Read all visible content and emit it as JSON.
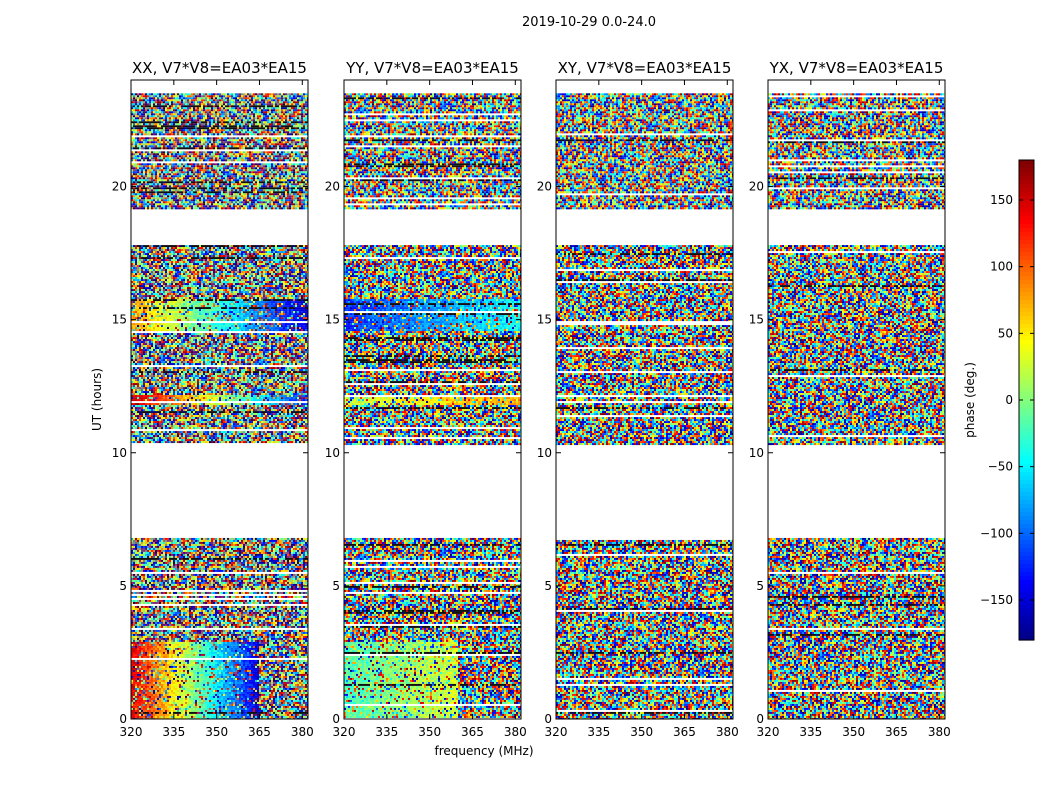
{
  "suptitle": "2019-10-29 0.0-24.0",
  "chart_data": [
    {
      "type": "heatmap",
      "title": "XX, V7*V8=EA03*EA15",
      "xlabel": "",
      "ylabel": "UT (hours)",
      "xlim": [
        320,
        382
      ],
      "ylim": [
        0,
        24
      ],
      "xticks": [
        320,
        335,
        350,
        365,
        380
      ],
      "yticks": [
        0,
        5,
        10,
        15,
        20
      ],
      "variable": "phase (deg.)",
      "value_range": [
        -180,
        180
      ],
      "data_time_blocks_hours": [
        [
          0.0,
          6.8
        ],
        [
          10.3,
          17.8
        ],
        [
          19.2,
          23.5
        ]
      ],
      "coherent_features": [
        {
          "ut_hours": [
            0.0,
            2.9
          ],
          "freq_MHz": [
            320,
            365
          ],
          "phase_deg_start": 150,
          "phase_deg_end": -150
        },
        {
          "ut_hours": [
            11.8,
            12.2
          ],
          "freq_MHz": [
            320,
            382
          ],
          "phase_deg_start": 160,
          "phase_deg_end": -120
        },
        {
          "ut_hours": [
            14.6,
            15.8
          ],
          "freq_MHz": [
            320,
            382
          ],
          "phase_deg_start": 80,
          "phase_deg_end": -150
        }
      ]
    },
    {
      "type": "heatmap",
      "title": "YY, V7*V8=EA03*EA15",
      "xlabel": "frequency (MHz)",
      "ylabel": "",
      "xlim": [
        320,
        382
      ],
      "ylim": [
        0,
        24
      ],
      "xticks": [
        320,
        335,
        350,
        365,
        380
      ],
      "yticks": [
        0,
        5,
        10,
        15,
        20
      ],
      "variable": "phase (deg.)",
      "value_range": [
        -180,
        180
      ],
      "data_time_blocks_hours": [
        [
          0.0,
          6.8
        ],
        [
          10.3,
          17.8
        ],
        [
          19.2,
          23.5
        ]
      ],
      "coherent_features": [
        {
          "ut_hours": [
            0.0,
            2.9
          ],
          "freq_MHz": [
            320,
            360
          ],
          "phase_deg_start": -20,
          "phase_deg_end": 30
        },
        {
          "ut_hours": [
            11.8,
            12.2
          ],
          "freq_MHz": [
            320,
            382
          ],
          "phase_deg_start": 20,
          "phase_deg_end": 80
        },
        {
          "ut_hours": [
            14.6,
            15.8
          ],
          "freq_MHz": [
            320,
            382
          ],
          "phase_deg_start": -120,
          "phase_deg_end": -40
        }
      ]
    },
    {
      "type": "heatmap",
      "title": "XY, V7*V8=EA03*EA15",
      "xlabel": "",
      "ylabel": "",
      "xlim": [
        320,
        382
      ],
      "ylim": [
        0,
        24
      ],
      "xticks": [
        320,
        335,
        350,
        365,
        380
      ],
      "yticks": [
        0,
        5,
        10,
        15,
        20
      ],
      "variable": "phase (deg.)",
      "value_range": [
        -180,
        180
      ],
      "data_time_blocks_hours": [
        [
          0.0,
          6.8
        ],
        [
          10.3,
          17.8
        ],
        [
          19.2,
          23.5
        ]
      ],
      "coherent_features": []
    },
    {
      "type": "heatmap",
      "title": "YX, V7*V8=EA03*EA15",
      "xlabel": "",
      "ylabel": "",
      "xlim": [
        320,
        382
      ],
      "ylim": [
        0,
        24
      ],
      "xticks": [
        320,
        335,
        350,
        365,
        380
      ],
      "yticks": [
        0,
        5,
        10,
        15,
        20
      ],
      "variable": "phase (deg.)",
      "value_range": [
        -180,
        180
      ],
      "data_time_blocks_hours": [
        [
          0.0,
          6.8
        ],
        [
          10.3,
          17.8
        ],
        [
          19.2,
          23.5
        ]
      ],
      "coherent_features": []
    }
  ],
  "colorbar": {
    "label": "phase (deg.)",
    "range": [
      -180,
      180
    ],
    "ticks": [
      -150,
      -100,
      -50,
      0,
      50,
      100,
      150
    ],
    "tick_labels": [
      "−150",
      "−100",
      "−50",
      "0",
      "50",
      "100",
      "150"
    ],
    "colormap": "jet"
  }
}
